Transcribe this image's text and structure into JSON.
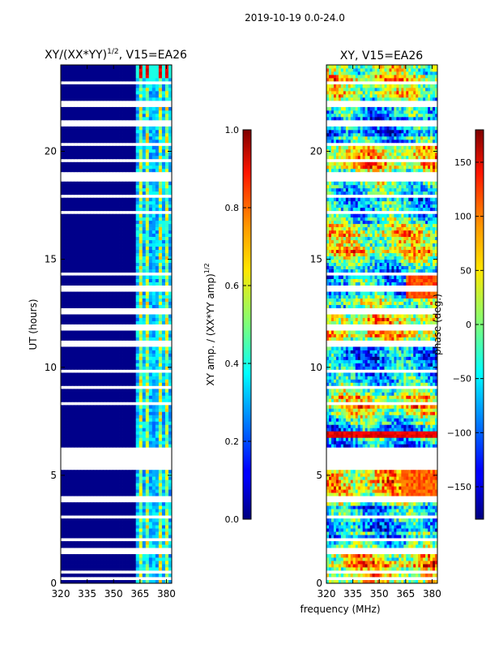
{
  "suptitle": "2019-10-19 0.0-24.0",
  "xlabel_shared": "frequency (MHz)",
  "chart_data": [
    {
      "type": "heatmap",
      "title_main": "XY/(XX*YY)",
      "title_sup": "1/2",
      "title_rest": ", V15=EA26",
      "xlabel": "",
      "ylabel": "UT (hours)",
      "xlim": [
        320,
        383
      ],
      "ylim": [
        0,
        24
      ],
      "xticks": [
        320,
        335,
        350,
        365,
        380
      ],
      "xtick_labels": [
        "320",
        "335",
        "350",
        "365",
        "380"
      ],
      "yticks": [
        0,
        5,
        10,
        15,
        20
      ],
      "ytick_labels": [
        "0",
        "5",
        "10",
        "15",
        "20"
      ],
      "colorbar": {
        "label_main": "XY amp. / (XX*YY amp)",
        "label_sup": "1/2",
        "range": [
          0.0,
          1.0
        ],
        "ticks": [
          0.0,
          0.2,
          0.4,
          0.6,
          0.8,
          1.0
        ],
        "tick_labels": [
          "0.0",
          "0.2",
          "0.4",
          "0.6",
          "0.8",
          "1.0"
        ],
        "colormap": "jet"
      },
      "gaps_hours": [
        [
          0.15,
          0.35
        ],
        [
          0.5,
          0.6
        ],
        [
          1.35,
          1.6
        ],
        [
          1.95,
          2.05
        ],
        [
          3.0,
          3.2
        ],
        [
          3.7,
          4.05
        ],
        [
          5.25,
          6.35
        ],
        [
          6.55,
          6.65
        ],
        [
          8.2,
          8.35
        ],
        [
          8.5,
          8.6
        ],
        [
          9.05,
          9.15
        ],
        [
          9.8,
          9.95
        ],
        [
          10.95,
          11.25
        ],
        [
          11.75,
          11.95
        ],
        [
          12.45,
          12.7
        ],
        [
          13.55,
          13.8
        ],
        [
          14.3,
          14.4
        ],
        [
          16.75,
          16.85
        ],
        [
          17.15,
          17.3
        ],
        [
          17.9,
          18.0
        ],
        [
          18.6,
          19.0
        ],
        [
          19.55,
          19.7
        ],
        [
          20.25,
          20.4
        ],
        [
          21.2,
          21.4
        ],
        [
          22.05,
          22.3
        ],
        [
          23.1,
          23.3
        ]
      ],
      "bright_channels_mhz": [
        [
          364,
          366
        ],
        [
          368,
          370
        ],
        [
          373,
          374.5
        ],
        [
          376,
          378
        ],
        [
          379,
          381
        ]
      ]
    },
    {
      "type": "heatmap",
      "title": "XY, V15=EA26",
      "xlabel": "",
      "ylabel": "",
      "xlim": [
        320,
        383
      ],
      "ylim": [
        0,
        24
      ],
      "xticks": [
        320,
        335,
        350,
        365,
        380
      ],
      "xtick_labels": [
        "320",
        "335",
        "350",
        "365",
        "380"
      ],
      "yticks": [
        0,
        5,
        10,
        15,
        20
      ],
      "ytick_labels": [
        "0",
        "5",
        "10",
        "15",
        "20"
      ],
      "colorbar": {
        "label": "phase (deg.)",
        "range": [
          -180,
          180
        ],
        "ticks": [
          -150,
          -100,
          -50,
          0,
          50,
          100,
          150
        ],
        "tick_labels": [
          "−150",
          "−100",
          "−50",
          "0",
          "50",
          "100",
          "150"
        ],
        "colormap": "jet"
      },
      "gaps_hours": [
        [
          0.15,
          0.35
        ],
        [
          0.5,
          0.6
        ],
        [
          1.35,
          1.6
        ],
        [
          1.95,
          2.05
        ],
        [
          3.0,
          3.2
        ],
        [
          3.7,
          4.05
        ],
        [
          5.25,
          6.35
        ],
        [
          6.55,
          6.65
        ],
        [
          8.2,
          8.35
        ],
        [
          8.5,
          8.6
        ],
        [
          9.05,
          9.15
        ],
        [
          9.8,
          9.95
        ],
        [
          10.95,
          11.25
        ],
        [
          11.75,
          11.95
        ],
        [
          12.45,
          12.7
        ],
        [
          13.55,
          13.8
        ],
        [
          14.3,
          14.4
        ],
        [
          16.75,
          16.85
        ],
        [
          17.15,
          17.3
        ],
        [
          17.9,
          18.0
        ],
        [
          18.6,
          19.0
        ],
        [
          19.55,
          19.7
        ],
        [
          20.25,
          20.4
        ],
        [
          21.2,
          21.4
        ],
        [
          22.05,
          22.3
        ],
        [
          23.1,
          23.3
        ]
      ]
    }
  ]
}
